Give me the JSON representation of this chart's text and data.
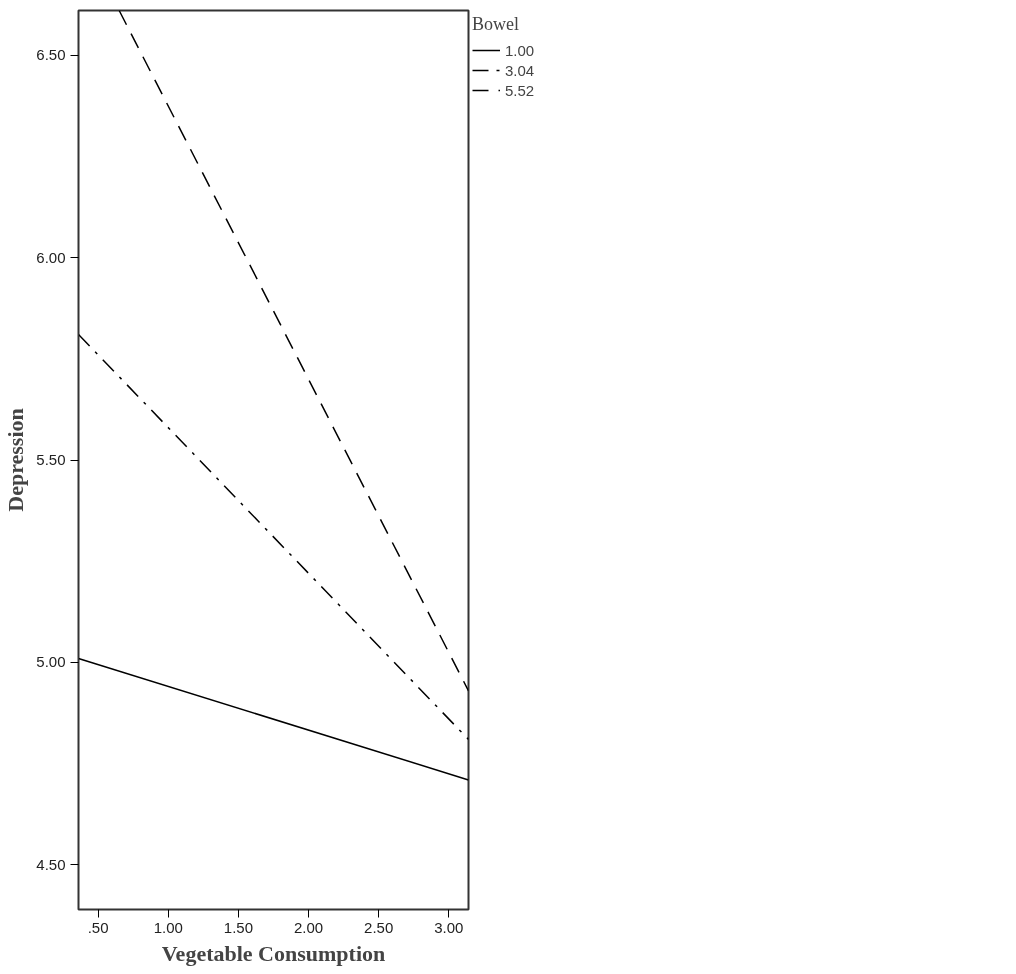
{
  "chart_data": {
    "type": "line",
    "xlabel": "Vegetable Consumption",
    "ylabel": "Depression",
    "legend_title": "Bowel",
    "xlim": [
      0.36,
      3.14
    ],
    "xticks": [
      {
        "value": 0.5,
        "label": ".50"
      },
      {
        "value": 1.0,
        "label": "1.00"
      },
      {
        "value": 1.5,
        "label": "1.50"
      },
      {
        "value": 2.0,
        "label": "2.00"
      },
      {
        "value": 2.5,
        "label": "2.50"
      },
      {
        "value": 3.0,
        "label": "3.00"
      }
    ],
    "ylim": [
      4.39,
      6.61
    ],
    "yticks": [
      {
        "value": 4.5,
        "label": "4.50"
      },
      {
        "value": 5.0,
        "label": "5.00"
      },
      {
        "value": 5.5,
        "label": "5.50"
      },
      {
        "value": 6.0,
        "label": "6.00"
      },
      {
        "value": 6.5,
        "label": "6.50"
      }
    ],
    "grid": false,
    "legend": "top right",
    "series": [
      {
        "name": "1.00",
        "color": "#000000",
        "line_style": "solid",
        "x": [
          0.36,
          3.14
        ],
        "values": [
          5.01,
          4.71
        ]
      },
      {
        "name": "3.04",
        "color": "#000000",
        "line_style": "dashdot",
        "x": [
          0.36,
          3.14
        ],
        "values": [
          5.81,
          4.81
        ]
      },
      {
        "name": "5.52",
        "color": "#000000",
        "line_style": "dashed",
        "x": [
          0.65,
          3.14
        ],
        "values": [
          6.61,
          4.93
        ]
      }
    ]
  }
}
